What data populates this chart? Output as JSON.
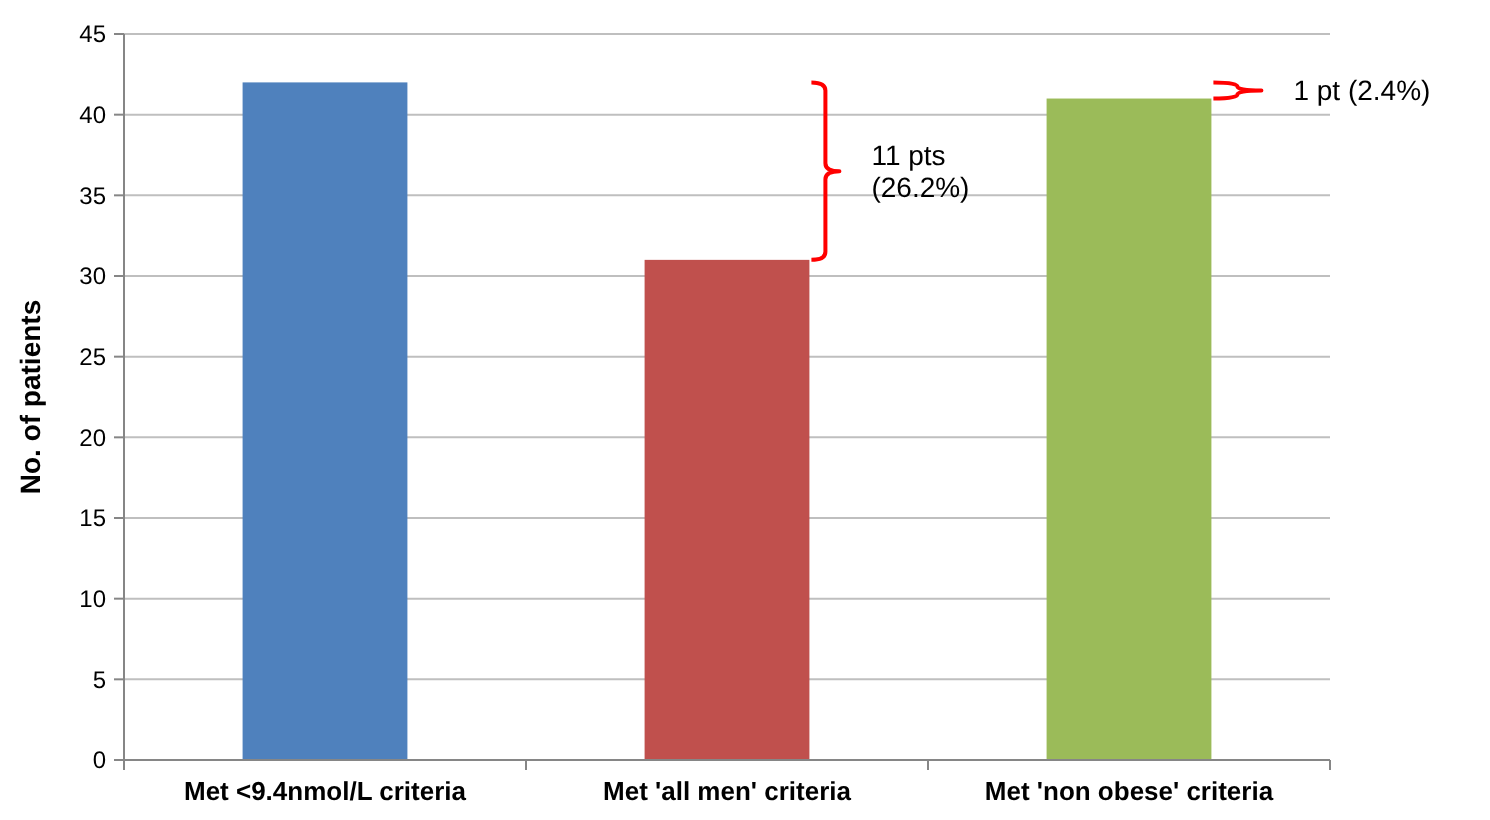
{
  "chart_data": {
    "type": "bar",
    "ylabel": "No. of patients",
    "categories": [
      "Met <9.4nmol/L criteria",
      "Met 'all men' criteria",
      "Met 'non obese' criteria"
    ],
    "values": [
      42,
      31,
      41
    ],
    "colors": [
      "#4f81bd",
      "#c0504d",
      "#9bbb59"
    ],
    "ylim": [
      0,
      45
    ],
    "yticks": [
      0,
      5,
      10,
      15,
      20,
      25,
      30,
      35,
      40,
      45
    ],
    "grid": "y",
    "annotations": [
      "11 pts (26.2%)",
      "1 pt (2.4%)"
    ]
  }
}
